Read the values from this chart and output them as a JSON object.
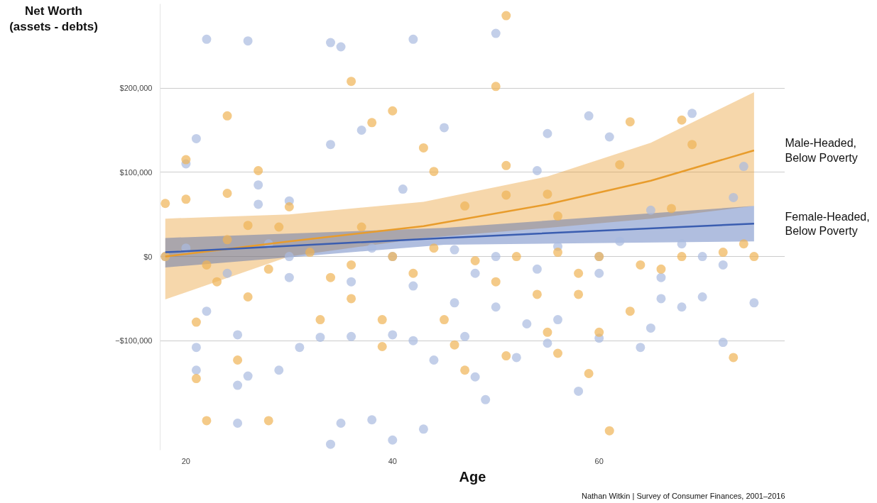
{
  "chart_data": {
    "type": "scatter",
    "ylabel": "Net Worth\n(assets - debts)",
    "xlabel": "Age",
    "xlim": [
      17.5,
      78
    ],
    "ylim": [
      -230000,
      300000
    ],
    "xticks": [
      20,
      40,
      60
    ],
    "yticks": [
      {
        "value": -100000,
        "label": "−$100,000"
      },
      {
        "value": 0,
        "label": "$0"
      },
      {
        "value": 100000,
        "label": "$100,000"
      },
      {
        "value": 200000,
        "label": "$200,000"
      }
    ],
    "grid": "y",
    "marker": "circle",
    "annotations": [
      "Nathan Witkin | Survey of Consumer Finances, 2001–2016"
    ],
    "series": [
      {
        "color": "#a9bbe0",
        "x": [
          22,
          26,
          34,
          35,
          42,
          50,
          21,
          20,
          37,
          34,
          45,
          55,
          59,
          61,
          69,
          41,
          27,
          27,
          30,
          54,
          74,
          65,
          22,
          25,
          21,
          21,
          25,
          26,
          29,
          31,
          33,
          36,
          38,
          40,
          43,
          34,
          25,
          35,
          44,
          47,
          48,
          49,
          52,
          55,
          58,
          60,
          64,
          65,
          68,
          72,
          75,
          42,
          40,
          46,
          50,
          53,
          56,
          66,
          70,
          18,
          24,
          30,
          36,
          42,
          48,
          54,
          60,
          66,
          72,
          20,
          28,
          38,
          46,
          56,
          62,
          68,
          73,
          30,
          40,
          50,
          60,
          70
        ],
        "values": [
          258000,
          256000,
          254000,
          249000,
          258000,
          265000,
          140000,
          110000,
          150000,
          133000,
          153000,
          146000,
          167000,
          142000,
          170000,
          80000,
          85000,
          62000,
          66000,
          102000,
          107000,
          55000,
          -65000,
          -93000,
          -108000,
          -135000,
          -153000,
          -142000,
          -135000,
          -108000,
          -96000,
          -95000,
          -194000,
          -218000,
          -205000,
          -223000,
          -198000,
          -198000,
          -123000,
          -95000,
          -143000,
          -170000,
          -120000,
          -103000,
          -160000,
          -97000,
          -108000,
          -85000,
          -60000,
          -102000,
          -55000,
          -100000,
          -93000,
          -55000,
          -60000,
          -80000,
          -75000,
          -50000,
          -48000,
          0,
          -20000,
          -25000,
          -30000,
          -35000,
          -20000,
          -15000,
          -20000,
          -25000,
          -10000,
          10000,
          15000,
          10000,
          8000,
          12000,
          18000,
          15000,
          70000,
          0,
          0,
          0,
          0,
          0
        ]
      },
      {
        "color": "#f0b455",
        "x": [
          51,
          36,
          50,
          24,
          40,
          38,
          43,
          63,
          68,
          69,
          20,
          27,
          44,
          51,
          62,
          18,
          20,
          24,
          30,
          47,
          51,
          55,
          26,
          29,
          37,
          56,
          67,
          22,
          28,
          61,
          21,
          25,
          46,
          39,
          47,
          51,
          59,
          60,
          55,
          56,
          73,
          63,
          21,
          26,
          33,
          36,
          39,
          45,
          54,
          58,
          18,
          22,
          24,
          28,
          32,
          36,
          40,
          44,
          48,
          52,
          56,
          60,
          64,
          68,
          72,
          75,
          23,
          34,
          42,
          50,
          58,
          66,
          74
        ],
        "values": [
          286000,
          208000,
          202000,
          167000,
          173000,
          159000,
          129000,
          160000,
          162000,
          133000,
          115000,
          102000,
          101000,
          108000,
          109000,
          63000,
          68000,
          75000,
          59000,
          60000,
          73000,
          74000,
          37000,
          35000,
          35000,
          48000,
          57000,
          -195000,
          -195000,
          -207000,
          -145000,
          -123000,
          -105000,
          -107000,
          -135000,
          -118000,
          -139000,
          -90000,
          -90000,
          -115000,
          -120000,
          -65000,
          -78000,
          -48000,
          -75000,
          -50000,
          -75000,
          -75000,
          -45000,
          -45000,
          0,
          -10000,
          20000,
          -15000,
          5000,
          -10000,
          0,
          10000,
          -5000,
          0,
          5000,
          0,
          -10000,
          0,
          5000,
          0,
          -30000,
          -25000,
          -20000,
          -30000,
          -20000,
          -15000,
          15000
        ]
      },
      {
        "type": "line",
        "marker": "none",
        "name": "Male-Headed, Below Poverty",
        "color": "#e89c2c",
        "x": [
          18,
          30,
          43,
          55,
          65,
          75
        ],
        "values": [
          0,
          18000,
          36000,
          62000,
          90000,
          126000
        ],
        "lower": [
          -51000,
          0,
          22000,
          34000,
          45000,
          60000
        ],
        "upper": [
          45000,
          50000,
          65000,
          95000,
          135000,
          195000
        ]
      },
      {
        "type": "line",
        "marker": "none",
        "name": "Female-Headed, Below Poverty",
        "color": "#3a5db0",
        "x": [
          18,
          45,
          75
        ],
        "values": [
          5000,
          22000,
          39000
        ],
        "lower": [
          -13000,
          14000,
          18000
        ],
        "upper": [
          22000,
          34000,
          60000
        ]
      }
    ]
  }
}
